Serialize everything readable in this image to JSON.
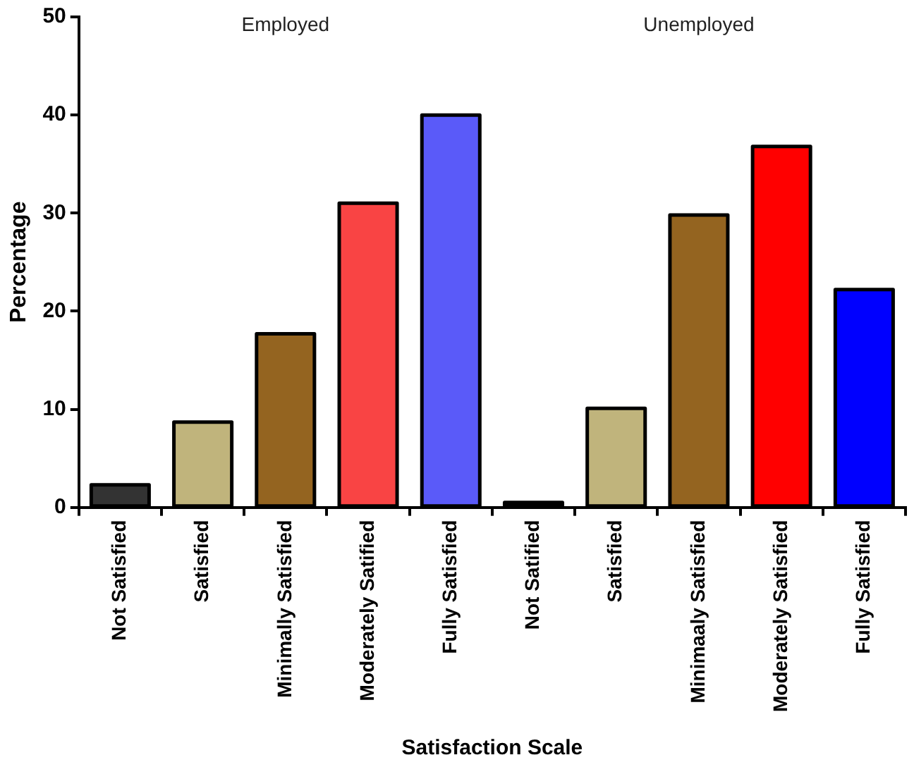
{
  "chart_data": {
    "type": "bar",
    "xlabel": "Satisfaction Scale",
    "ylabel": "Percentage",
    "categories": [
      "Not Satisfied",
      "Satisfied",
      "Minimally Satisfied",
      "Moderately Satified",
      "Fully Satisfied",
      "Not Satified",
      "Satisfied",
      "Minimaaly Satisfied",
      "Moderately Satisfied",
      "Fully Satisfied"
    ],
    "values": [
      2.3,
      8.7,
      17.7,
      31.0,
      40.0,
      0.5,
      10.1,
      29.8,
      36.8,
      22.2
    ],
    "colors": [
      "#333333",
      "#c0b47c",
      "#946420",
      "#f94444",
      "#5a5af9",
      "#222222",
      "#c0b47c",
      "#946420",
      "#ff0000",
      "#0000ff"
    ],
    "annotations": [
      "Employed",
      "Unemployed"
    ],
    "ylim": [
      0,
      50
    ],
    "yticks": [
      0,
      10,
      20,
      30,
      40,
      50
    ],
    "grid": false,
    "legend": false
  }
}
